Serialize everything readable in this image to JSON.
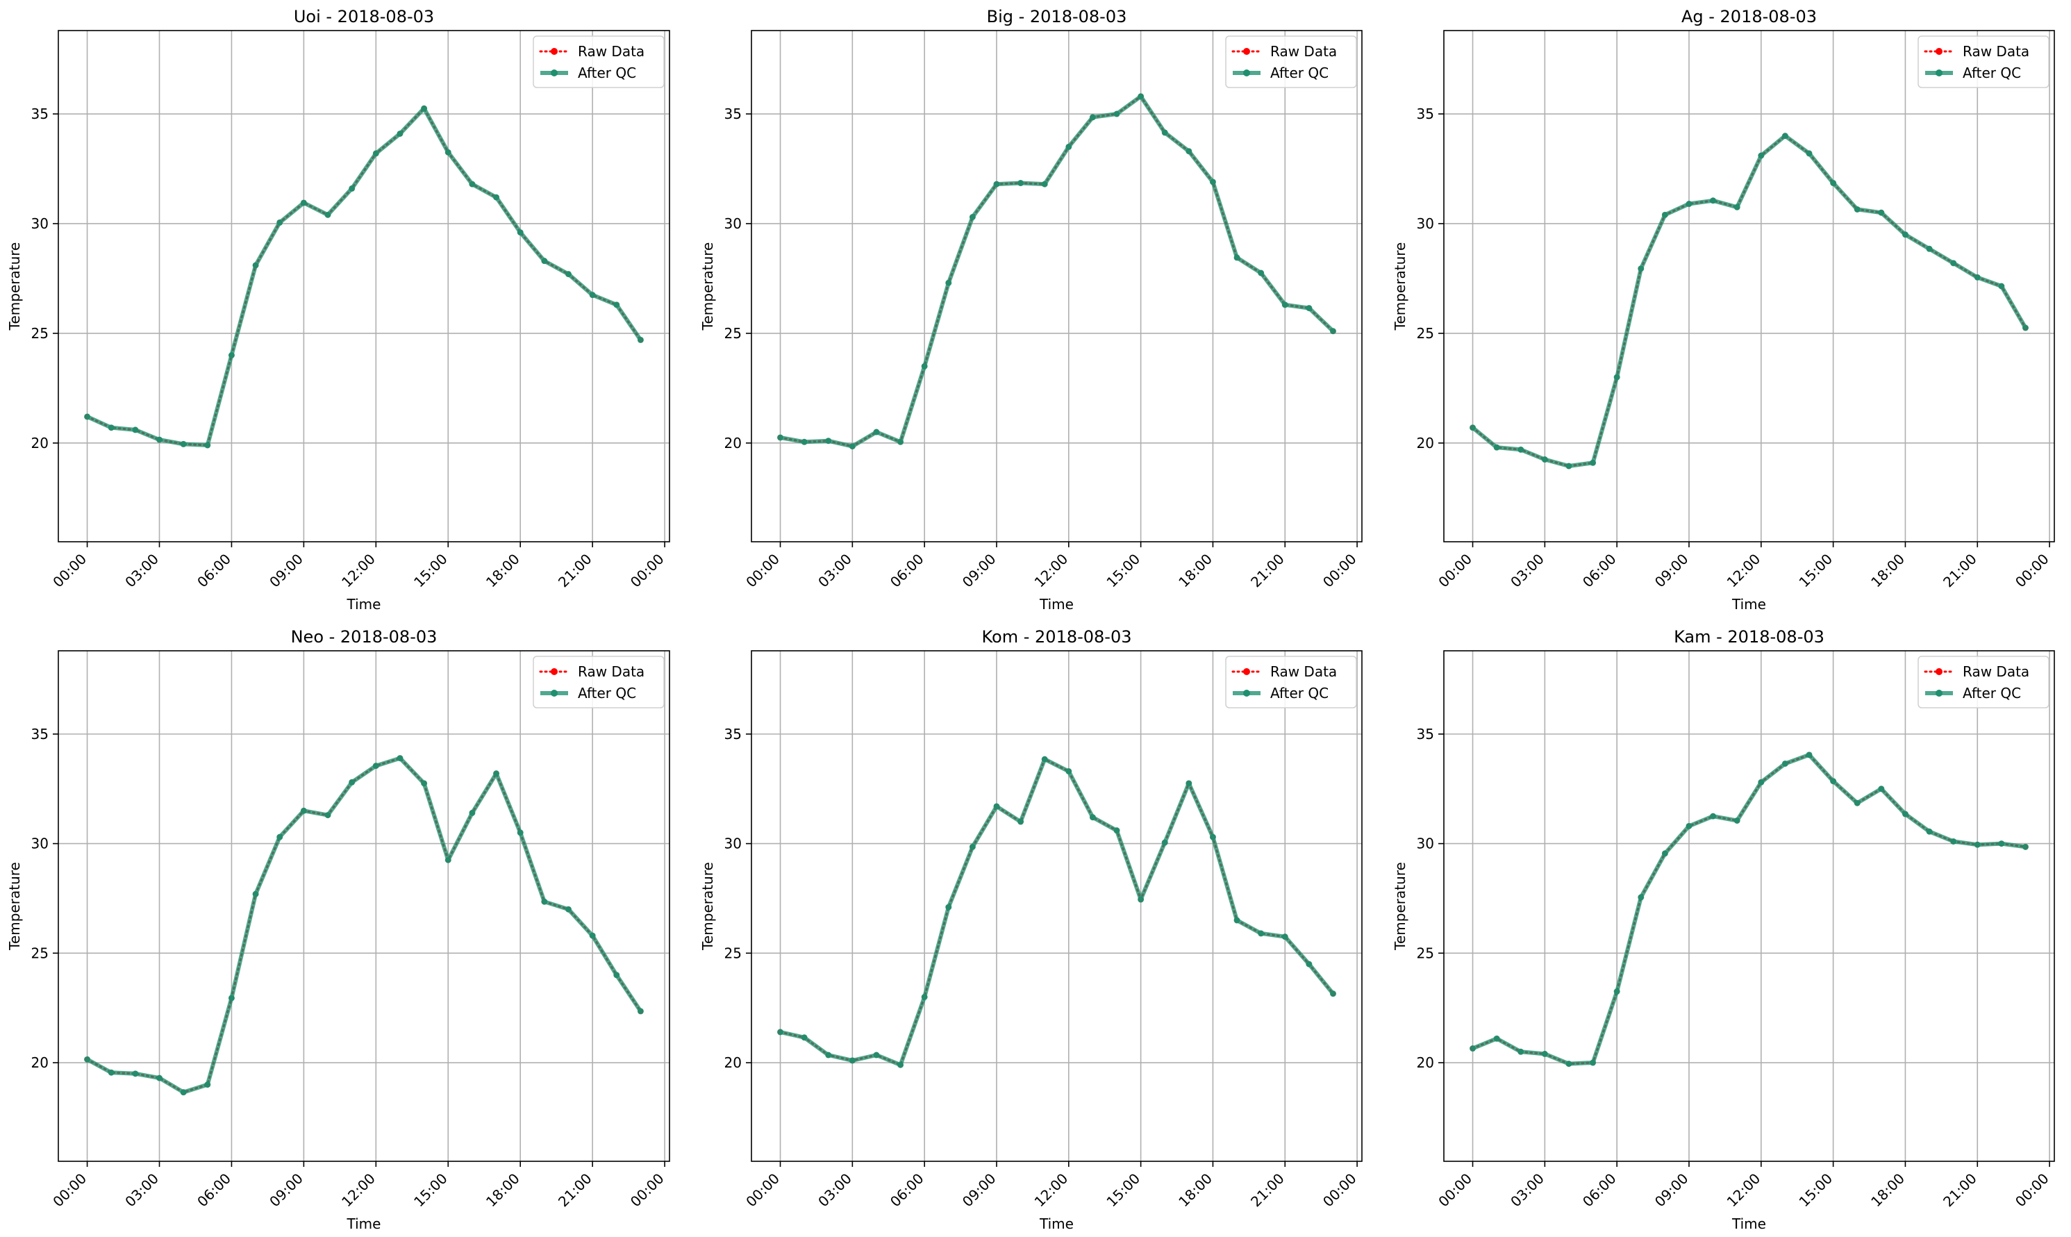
{
  "figure": {
    "colors": {
      "raw": "#ff0000",
      "qc": "#1f8f6f",
      "grid": "#b0b0b0",
      "axis": "#000000"
    }
  },
  "chart_data": [
    {
      "type": "line",
      "title": "Uoi - 2018-08-03",
      "xlabel": "Time",
      "ylabel": "Temperature",
      "x_ticks": [
        "00:00",
        "03:00",
        "06:00",
        "09:00",
        "12:00",
        "15:00",
        "18:00",
        "21:00",
        "00:00"
      ],
      "y_ticks": [
        20,
        25,
        30,
        35
      ],
      "ylim": [
        15.5,
        38.8
      ],
      "xlim_hours": [
        -1.2,
        24.2
      ],
      "grid": true,
      "legend_position": "top-right",
      "x_hours": [
        0,
        1,
        2,
        3,
        4,
        5,
        6,
        7,
        8,
        9,
        10,
        11,
        12,
        13,
        14,
        15,
        16,
        17,
        18,
        19,
        20,
        21,
        22,
        23
      ],
      "series": [
        {
          "name": "Raw Data",
          "style": "dotted-red",
          "values": [
            21.2,
            20.7,
            20.6,
            20.15,
            19.95,
            19.9,
            24.0,
            28.1,
            30.05,
            30.95,
            30.4,
            31.6,
            33.2,
            34.1,
            35.25,
            33.25,
            31.8,
            31.2,
            29.6,
            28.3,
            27.7,
            26.75,
            26.3,
            24.7
          ]
        },
        {
          "name": "After QC",
          "style": "solid-green",
          "values": [
            21.2,
            20.7,
            20.6,
            20.15,
            19.95,
            19.9,
            24.0,
            28.1,
            30.05,
            30.95,
            30.4,
            31.6,
            33.2,
            34.1,
            35.25,
            33.25,
            31.8,
            31.2,
            29.6,
            28.3,
            27.7,
            26.75,
            26.3,
            24.7
          ]
        }
      ]
    },
    {
      "type": "line",
      "title": "Big - 2018-08-03",
      "xlabel": "Time",
      "ylabel": "Temperature",
      "x_ticks": [
        "00:00",
        "03:00",
        "06:00",
        "09:00",
        "12:00",
        "15:00",
        "18:00",
        "21:00",
        "00:00"
      ],
      "y_ticks": [
        20,
        25,
        30,
        35
      ],
      "ylim": [
        15.5,
        38.8
      ],
      "xlim_hours": [
        -1.2,
        24.2
      ],
      "grid": true,
      "legend_position": "top-right",
      "x_hours": [
        0,
        1,
        2,
        3,
        4,
        5,
        6,
        7,
        8,
        9,
        10,
        11,
        12,
        13,
        14,
        15,
        16,
        17,
        18,
        19,
        20,
        21,
        22,
        23
      ],
      "series": [
        {
          "name": "Raw Data",
          "style": "dotted-red",
          "values": [
            20.25,
            20.05,
            20.1,
            19.85,
            20.5,
            20.05,
            23.5,
            27.3,
            30.3,
            31.8,
            31.85,
            31.8,
            33.5,
            34.85,
            35.0,
            35.8,
            34.15,
            33.3,
            31.9,
            28.45,
            27.75,
            26.3,
            26.15,
            25.1
          ]
        },
        {
          "name": "After QC",
          "style": "solid-green",
          "values": [
            20.25,
            20.05,
            20.1,
            19.85,
            20.5,
            20.05,
            23.5,
            27.3,
            30.3,
            31.8,
            31.85,
            31.8,
            33.5,
            34.85,
            35.0,
            35.8,
            34.15,
            33.3,
            31.9,
            28.45,
            27.75,
            26.3,
            26.15,
            25.1
          ]
        }
      ]
    },
    {
      "type": "line",
      "title": "Ag - 2018-08-03",
      "xlabel": "Time",
      "ylabel": "Temperature",
      "x_ticks": [
        "00:00",
        "03:00",
        "06:00",
        "09:00",
        "12:00",
        "15:00",
        "18:00",
        "21:00",
        "00:00"
      ],
      "y_ticks": [
        20,
        25,
        30,
        35
      ],
      "ylim": [
        15.5,
        38.8
      ],
      "xlim_hours": [
        -1.2,
        24.2
      ],
      "grid": true,
      "legend_position": "top-right",
      "x_hours": [
        0,
        1,
        2,
        3,
        4,
        5,
        6,
        7,
        8,
        9,
        10,
        11,
        12,
        13,
        14,
        15,
        16,
        17,
        18,
        19,
        20,
        21,
        22,
        23
      ],
      "series": [
        {
          "name": "Raw Data",
          "style": "dotted-red",
          "values": [
            20.7,
            19.8,
            19.7,
            19.25,
            18.95,
            19.1,
            23.0,
            27.95,
            30.4,
            30.9,
            31.05,
            30.75,
            33.1,
            34.0,
            33.2,
            31.85,
            30.65,
            30.5,
            29.5,
            28.85,
            28.2,
            27.55,
            27.15,
            25.25
          ]
        },
        {
          "name": "After QC",
          "style": "solid-green",
          "values": [
            20.7,
            19.8,
            19.7,
            19.25,
            18.95,
            19.1,
            23.0,
            27.95,
            30.4,
            30.9,
            31.05,
            30.75,
            33.1,
            34.0,
            33.2,
            31.85,
            30.65,
            30.5,
            29.5,
            28.85,
            28.2,
            27.55,
            27.15,
            25.25
          ]
        }
      ]
    },
    {
      "type": "line",
      "title": "Neo - 2018-08-03",
      "xlabel": "Time",
      "ylabel": "Temperature",
      "x_ticks": [
        "00:00",
        "03:00",
        "06:00",
        "09:00",
        "12:00",
        "15:00",
        "18:00",
        "21:00",
        "00:00"
      ],
      "y_ticks": [
        20,
        25,
        30,
        35
      ],
      "ylim": [
        15.5,
        38.8
      ],
      "xlim_hours": [
        -1.2,
        24.2
      ],
      "grid": true,
      "legend_position": "top-right",
      "x_hours": [
        0,
        1,
        2,
        3,
        4,
        5,
        6,
        7,
        8,
        9,
        10,
        11,
        12,
        13,
        14,
        15,
        16,
        17,
        18,
        19,
        20,
        21,
        22,
        23
      ],
      "series": [
        {
          "name": "Raw Data",
          "style": "dotted-red",
          "values": [
            20.15,
            19.55,
            19.5,
            19.3,
            18.65,
            19.0,
            22.95,
            27.7,
            30.3,
            31.5,
            31.3,
            32.8,
            33.55,
            33.9,
            32.75,
            29.25,
            31.4,
            33.2,
            30.5,
            27.35,
            27.0,
            25.8,
            24.0,
            22.35
          ]
        },
        {
          "name": "After QC",
          "style": "solid-green",
          "values": [
            20.15,
            19.55,
            19.5,
            19.3,
            18.65,
            19.0,
            22.95,
            27.7,
            30.3,
            31.5,
            31.3,
            32.8,
            33.55,
            33.9,
            32.75,
            29.25,
            31.4,
            33.2,
            30.5,
            27.35,
            27.0,
            25.8,
            24.0,
            22.35
          ]
        }
      ]
    },
    {
      "type": "line",
      "title": "Kom - 2018-08-03",
      "xlabel": "Time",
      "ylabel": "Temperature",
      "x_ticks": [
        "00:00",
        "03:00",
        "06:00",
        "09:00",
        "12:00",
        "15:00",
        "18:00",
        "21:00",
        "00:00"
      ],
      "y_ticks": [
        20,
        25,
        30,
        35
      ],
      "ylim": [
        15.5,
        38.8
      ],
      "xlim_hours": [
        -1.2,
        24.2
      ],
      "grid": true,
      "legend_position": "top-right",
      "x_hours": [
        0,
        1,
        2,
        3,
        4,
        5,
        6,
        7,
        8,
        9,
        10,
        11,
        12,
        13,
        14,
        15,
        16,
        17,
        18,
        19,
        20,
        21,
        22,
        23
      ],
      "series": [
        {
          "name": "Raw Data",
          "style": "dotted-red",
          "values": [
            21.4,
            21.15,
            20.35,
            20.1,
            20.35,
            19.9,
            23.0,
            27.1,
            29.85,
            31.7,
            31.0,
            33.85,
            33.3,
            31.2,
            30.6,
            27.45,
            30.05,
            32.75,
            30.3,
            26.5,
            25.9,
            25.75,
            24.5,
            23.15
          ]
        },
        {
          "name": "After QC",
          "style": "solid-green",
          "values": [
            21.4,
            21.15,
            20.35,
            20.1,
            20.35,
            19.9,
            23.0,
            27.1,
            29.85,
            31.7,
            31.0,
            33.85,
            33.3,
            31.2,
            30.6,
            27.45,
            30.05,
            32.75,
            30.3,
            26.5,
            25.9,
            25.75,
            24.5,
            23.15
          ]
        }
      ]
    },
    {
      "type": "line",
      "title": "Kam - 2018-08-03",
      "xlabel": "Time",
      "ylabel": "Temperature",
      "x_ticks": [
        "00:00",
        "03:00",
        "06:00",
        "09:00",
        "12:00",
        "15:00",
        "18:00",
        "21:00",
        "00:00"
      ],
      "y_ticks": [
        20,
        25,
        30,
        35
      ],
      "ylim": [
        15.5,
        38.8
      ],
      "xlim_hours": [
        -1.2,
        24.2
      ],
      "grid": true,
      "legend_position": "top-right",
      "x_hours": [
        0,
        1,
        2,
        3,
        4,
        5,
        6,
        7,
        8,
        9,
        10,
        11,
        12,
        13,
        14,
        15,
        16,
        17,
        18,
        19,
        20,
        21,
        22,
        23
      ],
      "series": [
        {
          "name": "Raw Data",
          "style": "dotted-red",
          "values": [
            20.65,
            21.1,
            20.5,
            20.4,
            19.95,
            20.0,
            23.25,
            27.55,
            29.55,
            30.8,
            31.25,
            31.05,
            32.8,
            33.65,
            34.05,
            32.85,
            31.85,
            32.5,
            31.35,
            30.55,
            30.1,
            29.95,
            30.0,
            29.85
          ]
        },
        {
          "name": "After QC",
          "style": "solid-green",
          "values": [
            20.65,
            21.1,
            20.5,
            20.4,
            19.95,
            20.0,
            23.25,
            27.55,
            29.55,
            30.8,
            31.25,
            31.05,
            32.8,
            33.65,
            34.05,
            32.85,
            31.85,
            32.5,
            31.35,
            30.55,
            30.1,
            29.95,
            30.0,
            29.85
          ]
        }
      ]
    }
  ]
}
